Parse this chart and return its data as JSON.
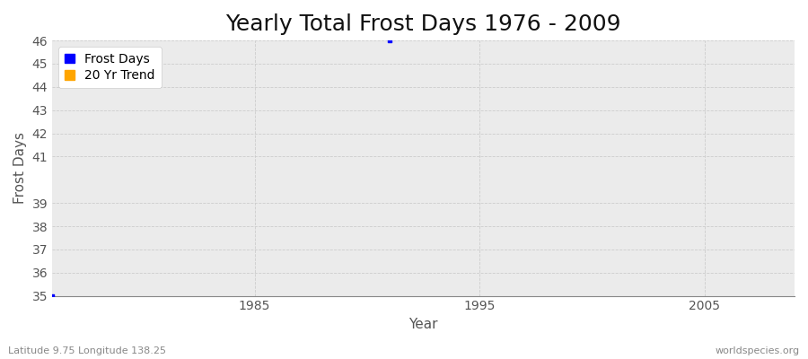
{
  "title": "Yearly Total Frost Days 1976 - 2009",
  "xlabel": "Year",
  "ylabel": "Frost Days",
  "xlim": [
    1976,
    2009
  ],
  "ylim": [
    35,
    46
  ],
  "yticks": [
    35,
    36,
    37,
    38,
    39,
    41,
    42,
    43,
    44,
    45,
    46
  ],
  "xticks": [
    1985,
    1995,
    2005
  ],
  "plot_bg_color": "#ebebeb",
  "fig_bg_color": "#ffffff",
  "grid_color": "#cccccc",
  "frost_days_color": "#0000ff",
  "trend_color": "#ffa500",
  "frost_days_x": [
    1991
  ],
  "frost_days_y": [
    46
  ],
  "frost_days_bottom_x": [
    1976
  ],
  "frost_days_bottom_y": [
    35
  ],
  "legend_labels": [
    "Frost Days",
    "20 Yr Trend"
  ],
  "legend_colors": [
    "#0000ff",
    "#ffa500"
  ],
  "bottom_left_text": "Latitude 9.75 Longitude 138.25",
  "bottom_right_text": "worldspecies.org",
  "title_fontsize": 18,
  "axis_label_fontsize": 11,
  "tick_fontsize": 10,
  "legend_fontsize": 10,
  "tick_color": "#555555",
  "label_color": "#555555",
  "title_color": "#111111"
}
